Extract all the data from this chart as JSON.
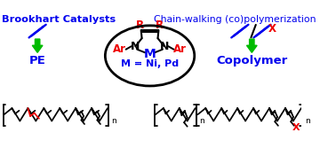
{
  "title_left": "Brookhart Catalysts",
  "title_right": "Chain-walking (co)polymerization",
  "label_PE": "PE",
  "label_copolymer": "Copolymer",
  "label_M": "M = Ni, Pd",
  "color_blue": "#0000EE",
  "color_red": "#EE0000",
  "color_green": "#00BB00",
  "color_black": "#000000",
  "color_white": "#FFFFFF"
}
